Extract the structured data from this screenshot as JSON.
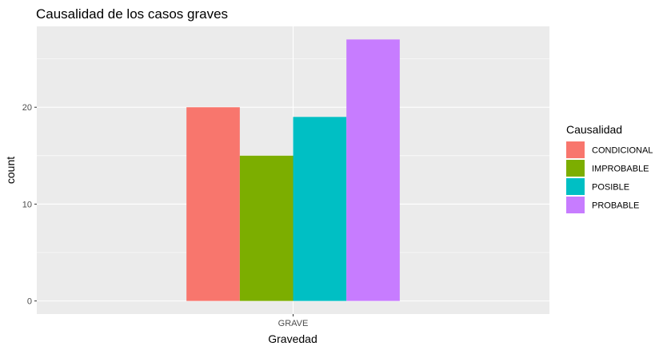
{
  "chart_data": {
    "type": "bar",
    "title": "Causalidad de los casos graves",
    "xlabel": "Gravedad",
    "ylabel": "count",
    "categories": [
      "GRAVE"
    ],
    "series": [
      {
        "name": "CONDICIONAL",
        "values": [
          20
        ],
        "color": "#F8766D"
      },
      {
        "name": "IMPROBABLE",
        "values": [
          15
        ],
        "color": "#7CAE00"
      },
      {
        "name": "POSIBLE",
        "values": [
          19
        ],
        "color": "#00BFC4"
      },
      {
        "name": "PROBABLE",
        "values": [
          27
        ],
        "color": "#C77CFF"
      }
    ],
    "ylim": [
      -1.35,
      28.35
    ],
    "yticks": [
      0,
      10,
      20
    ],
    "grid": true,
    "legend": {
      "title": "Causalidad",
      "position": "right"
    },
    "panel_background": "#EBEBEB",
    "gridline_color": "#FFFFFF"
  }
}
